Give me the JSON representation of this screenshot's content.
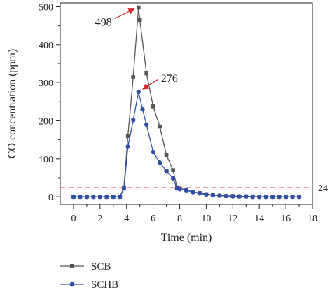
{
  "chart_data": {
    "type": "line",
    "xlabel": "Time (min)",
    "ylabel": "CO concentration (ppm)",
    "xlim": [
      -1,
      18
    ],
    "ylim": [
      -20,
      510
    ],
    "x_ticks": [
      0,
      2,
      4,
      6,
      8,
      10,
      12,
      14,
      16,
      18
    ],
    "y_ticks": [
      0,
      100,
      200,
      300,
      400,
      500
    ],
    "grid": false,
    "legend_position": "bottom-left, below plot",
    "series": [
      {
        "name": "SCB",
        "color": "#555555",
        "marker": "square",
        "x": [
          0,
          0.5,
          1,
          1.5,
          2,
          2.5,
          3,
          3.5,
          3.8,
          4.1,
          4.5,
          4.9,
          5.0,
          5.5,
          6.0,
          6.5,
          7.0,
          7.5,
          7.8,
          8.0,
          8.5,
          9.0,
          9.5,
          10,
          10.5,
          11,
          11.5,
          12,
          12.5,
          13,
          13.5,
          14,
          14.5,
          15,
          15.5,
          16,
          16.5,
          17
        ],
        "values": [
          0,
          0,
          0,
          0,
          0,
          0,
          0,
          0,
          25,
          160,
          315,
          498,
          465,
          325,
          238,
          185,
          110,
          70,
          25,
          22,
          18,
          13,
          10,
          7,
          5,
          3,
          2,
          2,
          1,
          1,
          1,
          0,
          0,
          0,
          0,
          0,
          0,
          0
        ]
      },
      {
        "name": "SCHB",
        "color": "#2f4fa8",
        "marker": "circle",
        "x": [
          0,
          0.5,
          1,
          1.5,
          2,
          2.5,
          3,
          3.5,
          3.8,
          4.1,
          4.5,
          4.9,
          5.2,
          5.5,
          6.0,
          6.5,
          7.0,
          7.5,
          7.8,
          8.0,
          8.5,
          9.0,
          9.5,
          10,
          10.5,
          11,
          11.5,
          12,
          12.5,
          13,
          13.5,
          14,
          14.5,
          15,
          15.5,
          16,
          16.5,
          17
        ],
        "values": [
          0,
          0,
          0,
          0,
          0,
          0,
          0,
          0,
          22,
          132,
          202,
          276,
          230,
          190,
          118,
          90,
          68,
          48,
          22,
          20,
          17,
          12,
          9,
          6,
          4,
          3,
          2,
          1,
          1,
          1,
          0,
          0,
          0,
          0,
          0,
          0,
          0,
          0
        ]
      }
    ],
    "reference_line": {
      "y": 24,
      "label": "24",
      "color": "#d94040",
      "style": "dashed"
    },
    "annotations": [
      {
        "text": "498",
        "x": 4.9,
        "y": 498,
        "arrow_color": "#d62b2b",
        "side": "left"
      },
      {
        "text": "276",
        "x": 4.9,
        "y": 276,
        "arrow_color": "#d62b2b",
        "side": "right"
      }
    ]
  }
}
